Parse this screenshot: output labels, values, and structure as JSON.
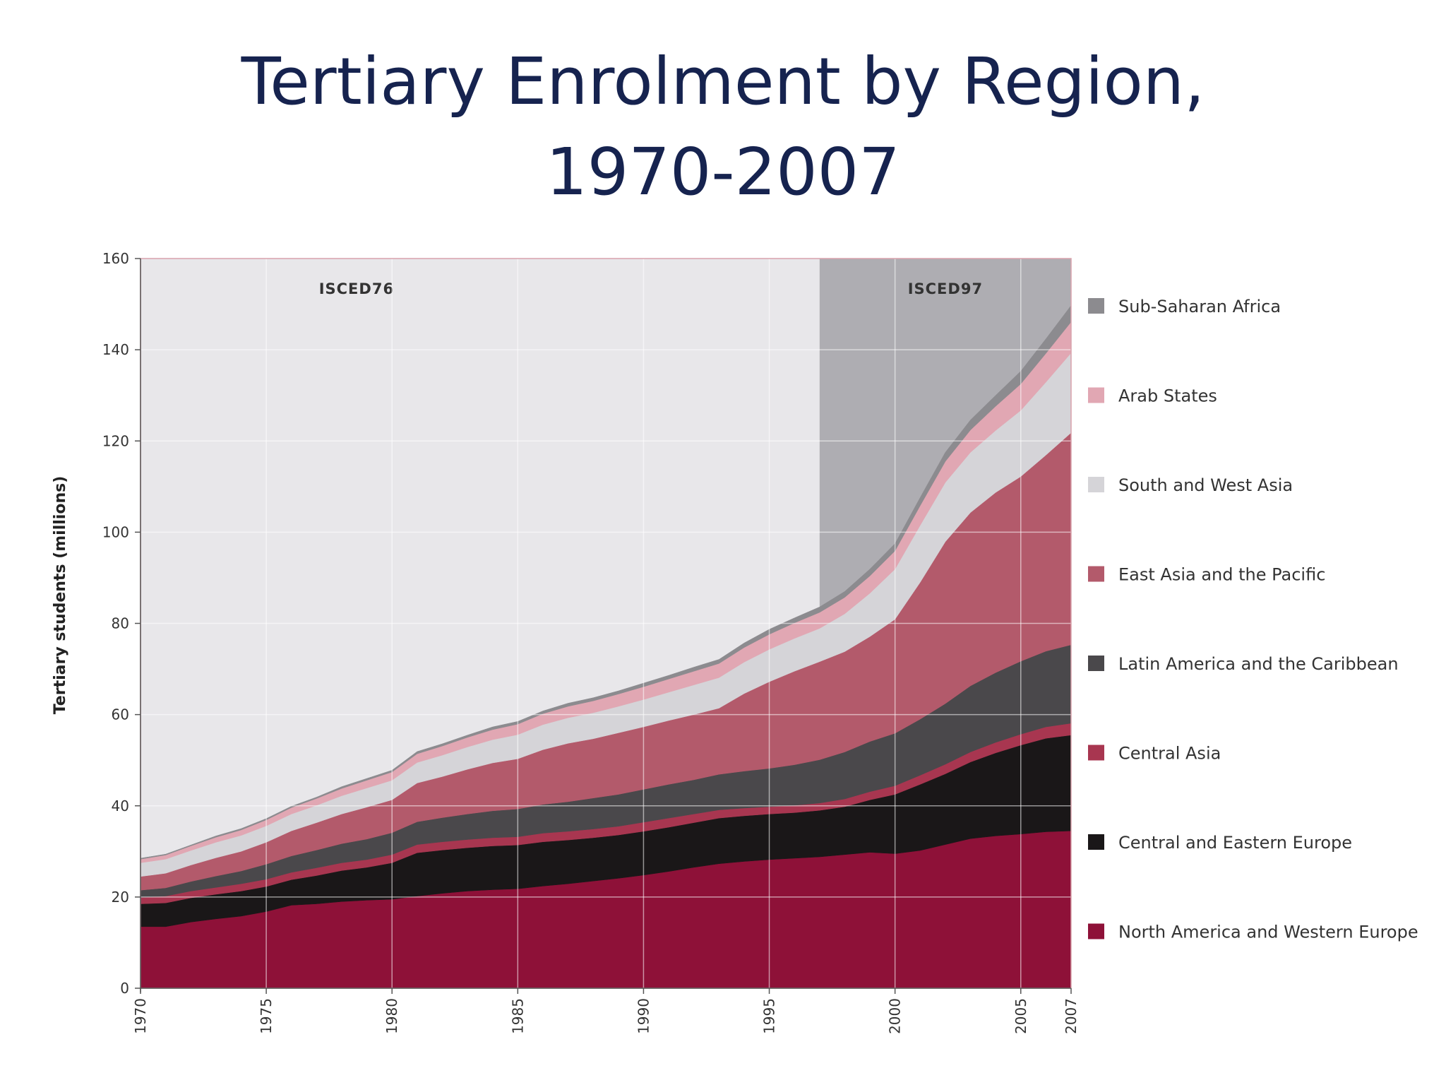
{
  "chart_data": {
    "type": "area",
    "stacked": true,
    "title": "Tertiary Enrolment by Region, 1970-2007",
    "title_lines": [
      "Tertiary Enrolment by Region,",
      "1970-2007"
    ],
    "ylabel": "Tertiary students (millions)",
    "xlabel": "",
    "xlim": [
      1970,
      2007
    ],
    "ylim": [
      0,
      160
    ],
    "yticks": [
      0,
      20,
      40,
      60,
      80,
      100,
      120,
      140,
      160
    ],
    "xticks": [
      1970,
      1975,
      1980,
      1985,
      1990,
      1995,
      2000,
      2005,
      2007
    ],
    "grid": true,
    "legend_position": "right",
    "periods": [
      {
        "label": "ISCED76",
        "from": 1970,
        "to": 1997,
        "color": "#e8e7ea"
      },
      {
        "label": "ISCED97",
        "from": 1997,
        "to": 2007,
        "color": "#aeadb2"
      }
    ],
    "x": [
      1970,
      1971,
      1972,
      1973,
      1974,
      1975,
      1976,
      1977,
      1978,
      1979,
      1980,
      1981,
      1982,
      1983,
      1984,
      1985,
      1986,
      1987,
      1988,
      1989,
      1990,
      1991,
      1992,
      1993,
      1994,
      1995,
      1996,
      1997,
      1998,
      1999,
      2000,
      2001,
      2002,
      2003,
      2004,
      2005,
      2006,
      2007
    ],
    "series": [
      {
        "name": "North America and Western Europe",
        "color": "#8e1138",
        "values": [
          13.5,
          13.5,
          14.5,
          15.2,
          15.8,
          16.8,
          18.2,
          18.5,
          19.0,
          19.3,
          19.5,
          20.2,
          20.8,
          21.3,
          21.6,
          21.8,
          22.4,
          22.9,
          23.5,
          24.1,
          24.8,
          25.6,
          26.5,
          27.3,
          27.8,
          28.2,
          28.5,
          28.8,
          29.3,
          29.8,
          29.5,
          30.2,
          31.5,
          32.8,
          33.4,
          33.8,
          34.3,
          34.5
        ]
      },
      {
        "name": "Central and Eastern Europe",
        "color": "#1a1718",
        "values": [
          5.0,
          5.2,
          5.3,
          5.4,
          5.5,
          5.5,
          5.6,
          6.2,
          6.8,
          7.2,
          8.0,
          9.5,
          9.5,
          9.5,
          9.6,
          9.6,
          9.7,
          9.6,
          9.5,
          9.5,
          9.6,
          9.7,
          9.8,
          10.0,
          10.0,
          10.0,
          10.0,
          10.2,
          10.5,
          11.5,
          13.0,
          14.5,
          15.5,
          16.8,
          18.2,
          19.5,
          20.5,
          21.0
        ]
      },
      {
        "name": "Central Asia",
        "color": "#a83650",
        "values": [
          1.4,
          1.5,
          1.5,
          1.5,
          1.6,
          1.6,
          1.6,
          1.7,
          1.7,
          1.7,
          1.8,
          1.8,
          1.8,
          1.8,
          1.8,
          1.8,
          1.9,
          1.9,
          1.9,
          1.9,
          2.0,
          2.0,
          1.9,
          1.8,
          1.7,
          1.6,
          1.6,
          1.6,
          1.7,
          1.8,
          1.9,
          2.0,
          2.1,
          2.2,
          2.3,
          2.4,
          2.5,
          2.6
        ]
      },
      {
        "name": "Latin America and the Caribbean",
        "color": "#4a484b",
        "values": [
          1.6,
          1.8,
          2.1,
          2.5,
          2.8,
          3.3,
          3.6,
          3.9,
          4.2,
          4.5,
          4.8,
          5.0,
          5.3,
          5.6,
          5.9,
          6.1,
          6.3,
          6.5,
          6.8,
          7.0,
          7.2,
          7.4,
          7.5,
          7.8,
          8.1,
          8.4,
          8.9,
          9.5,
          10.3,
          11.0,
          11.5,
          12.3,
          13.3,
          14.5,
          15.3,
          16.0,
          16.6,
          17.2
        ]
      },
      {
        "name": "East Asia and the Pacific",
        "color": "#b35a6b",
        "values": [
          3.0,
          3.2,
          3.6,
          4.0,
          4.3,
          4.8,
          5.5,
          6.0,
          6.5,
          7.0,
          7.2,
          8.5,
          9.0,
          9.8,
          10.5,
          11.0,
          12.0,
          12.8,
          13.0,
          13.5,
          13.7,
          14.0,
          14.3,
          14.5,
          17.0,
          19.0,
          20.5,
          21.5,
          22.0,
          23.0,
          25.0,
          30.0,
          35.5,
          38.0,
          39.5,
          40.5,
          43.0,
          46.5
        ]
      },
      {
        "name": "South and West Asia",
        "color": "#d5d4d8",
        "values": [
          3.0,
          3.1,
          3.2,
          3.4,
          3.5,
          3.6,
          3.7,
          3.8,
          4.0,
          4.2,
          4.3,
          4.5,
          4.7,
          4.9,
          5.1,
          5.3,
          5.5,
          5.6,
          5.7,
          5.8,
          6.0,
          6.2,
          6.5,
          6.7,
          6.9,
          7.1,
          7.2,
          7.3,
          8.3,
          9.5,
          11.0,
          12.5,
          13.0,
          13.2,
          13.6,
          14.5,
          16.0,
          17.5
        ]
      },
      {
        "name": "Arab States",
        "color": "#e1a7b3",
        "values": [
          0.8,
          0.9,
          1.0,
          1.1,
          1.2,
          1.3,
          1.4,
          1.5,
          1.6,
          1.7,
          1.8,
          1.9,
          2.0,
          2.1,
          2.2,
          2.3,
          2.4,
          2.5,
          2.6,
          2.7,
          2.8,
          2.9,
          3.0,
          3.1,
          3.2,
          3.3,
          3.4,
          3.5,
          3.6,
          3.8,
          4.0,
          4.3,
          4.6,
          4.9,
          5.3,
          5.8,
          6.3,
          6.8
        ]
      },
      {
        "name": "Sub-Saharan Africa",
        "color": "#8c8b8f",
        "values": [
          0.2,
          0.2,
          0.2,
          0.3,
          0.3,
          0.3,
          0.3,
          0.3,
          0.4,
          0.4,
          0.4,
          0.5,
          0.5,
          0.5,
          0.6,
          0.6,
          0.6,
          0.7,
          0.7,
          0.7,
          0.8,
          0.8,
          0.9,
          0.9,
          1.0,
          1.1,
          1.1,
          1.2,
          1.3,
          1.5,
          1.6,
          1.8,
          2.0,
          2.2,
          2.4,
          2.8,
          3.2,
          3.6
        ]
      }
    ]
  }
}
